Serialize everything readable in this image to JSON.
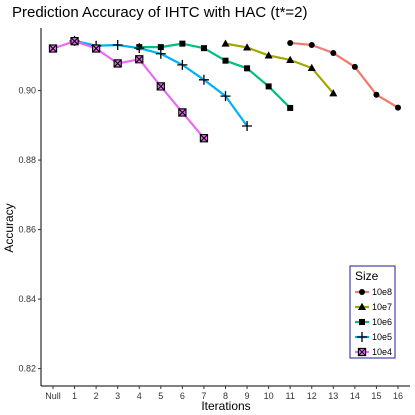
{
  "chart_data": {
    "type": "line",
    "title": "Prediction Accuracy of IHTC with HAC (t*=2)",
    "xlabel": "Iterations",
    "ylabel": "Accuracy",
    "categories": [
      "Null",
      "1",
      "2",
      "3",
      "4",
      "5",
      "6",
      "7",
      "8",
      "9",
      "10",
      "11",
      "12",
      "13",
      "14",
      "15",
      "16"
    ],
    "ylim": [
      0.815,
      0.918
    ],
    "yticks": [
      0.82,
      0.84,
      0.86,
      0.88,
      0.9
    ],
    "ytick_labels": [
      "0.82",
      "0.84",
      "0.86",
      "0.88",
      "0.90"
    ],
    "grid": false,
    "legend_title": "Size",
    "legend_position": "bottom-right",
    "series": [
      {
        "name": "10e8",
        "color": "#F07A6E",
        "marker": "circle",
        "x": [
          "11",
          "12",
          "13",
          "14",
          "15",
          "16"
        ],
        "values": [
          0.9137,
          0.9131,
          0.9108,
          0.9068,
          0.8988,
          0.8951
        ]
      },
      {
        "name": "10e7",
        "color": "#A3A500",
        "marker": "triangle",
        "x": [
          "8",
          "9",
          "10",
          "11",
          "12",
          "13"
        ],
        "values": [
          0.9135,
          0.9124,
          0.9101,
          0.9088,
          0.9065,
          0.8992
        ]
      },
      {
        "name": "10e6",
        "color": "#00BF7D",
        "marker": "square",
        "x": [
          "4",
          "5",
          "6",
          "7",
          "8",
          "9",
          "10",
          "11"
        ],
        "values": [
          0.9125,
          0.9125,
          0.9135,
          0.9122,
          0.9086,
          0.9064,
          0.9012,
          0.895
        ]
      },
      {
        "name": "10e5",
        "color": "#00B0F6",
        "marker": "plus",
        "x": [
          "1",
          "2",
          "3",
          "4",
          "5",
          "6",
          "7",
          "8",
          "9"
        ],
        "values": [
          0.9143,
          0.9129,
          0.9131,
          0.9122,
          0.9106,
          0.9074,
          0.9031,
          0.8984,
          0.8898
        ]
      },
      {
        "name": "10e4",
        "color": "#E76BF3",
        "marker": "boxx",
        "x": [
          "Null",
          "1",
          "2",
          "3",
          "4",
          "5",
          "6",
          "7"
        ],
        "values": [
          0.9121,
          0.9142,
          0.9121,
          0.9078,
          0.909,
          0.9012,
          0.8937,
          0.8863
        ]
      }
    ]
  }
}
